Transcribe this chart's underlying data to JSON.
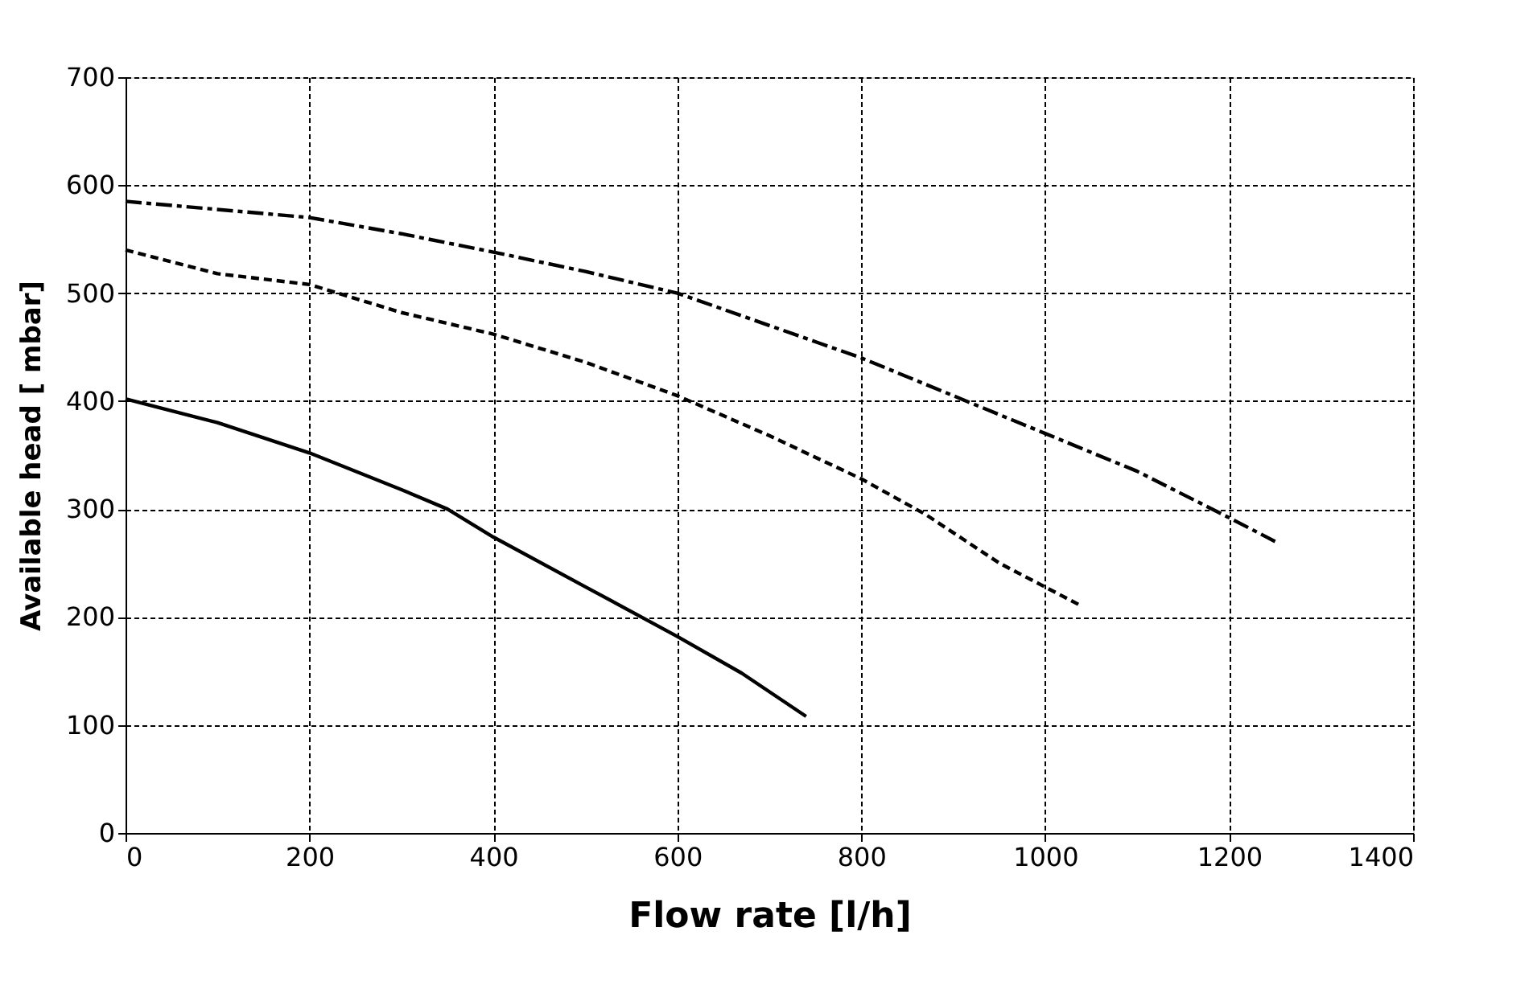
{
  "chart_data": {
    "type": "line",
    "xlabel": "Flow rate [l/h]",
    "ylabel": "Available head [ mbar]",
    "xlim": [
      0,
      1400
    ],
    "xticks": [
      0,
      200,
      400,
      600,
      800,
      1000,
      1200,
      1400
    ],
    "ylim": [
      0,
      700
    ],
    "yticks": [
      0,
      100,
      200,
      300,
      400,
      500,
      600,
      700
    ],
    "grid": true,
    "marker": "none",
    "series": [
      {
        "color": "#000000",
        "line_style": "solid",
        "x": [
          0,
          100,
          200,
          300,
          350,
          400,
          500,
          600,
          670,
          740
        ],
        "values": [
          402,
          380,
          352,
          318,
          300,
          274,
          228,
          182,
          148,
          108
        ]
      },
      {
        "color": "#000000",
        "line_style": "dotted",
        "x": [
          0,
          100,
          200,
          300,
          400,
          500,
          600,
          700,
          800,
          870,
          950,
          1040
        ],
        "values": [
          540,
          518,
          508,
          482,
          462,
          436,
          405,
          368,
          328,
          295,
          250,
          210
        ]
      },
      {
        "color": "#000000",
        "line_style": "dashed",
        "x": [
          0,
          200,
          300,
          400,
          500,
          600,
          700,
          800,
          900,
          1000,
          1100,
          1200,
          1250
        ],
        "values": [
          585,
          570,
          555,
          538,
          520,
          500,
          470,
          440,
          405,
          370,
          335,
          292,
          270
        ]
      }
    ]
  }
}
